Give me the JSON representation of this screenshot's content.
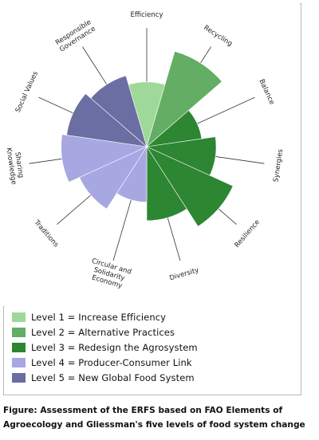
{
  "chart_data": {
    "type": "polar_area",
    "title": "",
    "categories": [
      "Efficiency",
      "Recycling",
      "Balance",
      "Synergies",
      "Resilience",
      "Diversity",
      "Circular and Solidarity Economy",
      "Traditions",
      "Sharing Knowledge",
      "Social Values",
      "Responsible Governance"
    ],
    "axis_labels": [
      [
        "Efficiency"
      ],
      [
        "Recycling"
      ],
      [
        "Balance"
      ],
      [
        "Synergies"
      ],
      [
        "Resilience"
      ],
      [
        "Diversity"
      ],
      [
        "Circular and",
        "Solidarity",
        "Economy"
      ],
      [
        "Traditions"
      ],
      [
        "Sharing",
        "Knowledge"
      ],
      [
        "Social Values"
      ],
      [
        "Responsible",
        "Governance"
      ]
    ],
    "values": [
      2.8,
      4.3,
      2.4,
      3.0,
      4.1,
      3.2,
      2.4,
      3.2,
      3.7,
      3.5,
      3.2
    ],
    "value_max": 5,
    "levels": [
      1,
      2,
      3,
      3,
      3,
      3,
      4,
      4,
      4,
      5,
      5
    ],
    "level_colors": {
      "1": "#9fd99a",
      "2": "#63ad64",
      "3": "#2d8632",
      "4": "#a7a7e2",
      "5": "#6b6ea2"
    },
    "legend": [
      {
        "level": 1,
        "label": "Level 1 = Increase Efficiency"
      },
      {
        "level": 2,
        "label": "Level 2 = Alternative Practices"
      },
      {
        "level": 3,
        "label": "Level 3 = Redesign the Agrosystem"
      },
      {
        "level": 4,
        "label": "Level 4 = Producer-Consumer Link"
      },
      {
        "level": 5,
        "label": "Level 5 = New Global Food System"
      }
    ],
    "legend_position": "bottom-left"
  },
  "caption": {
    "line1": "Figure: Assessment of the ERFS based on FAO Elements of",
    "line2": "Agroecology and Gliessman's five levels of food system change"
  }
}
